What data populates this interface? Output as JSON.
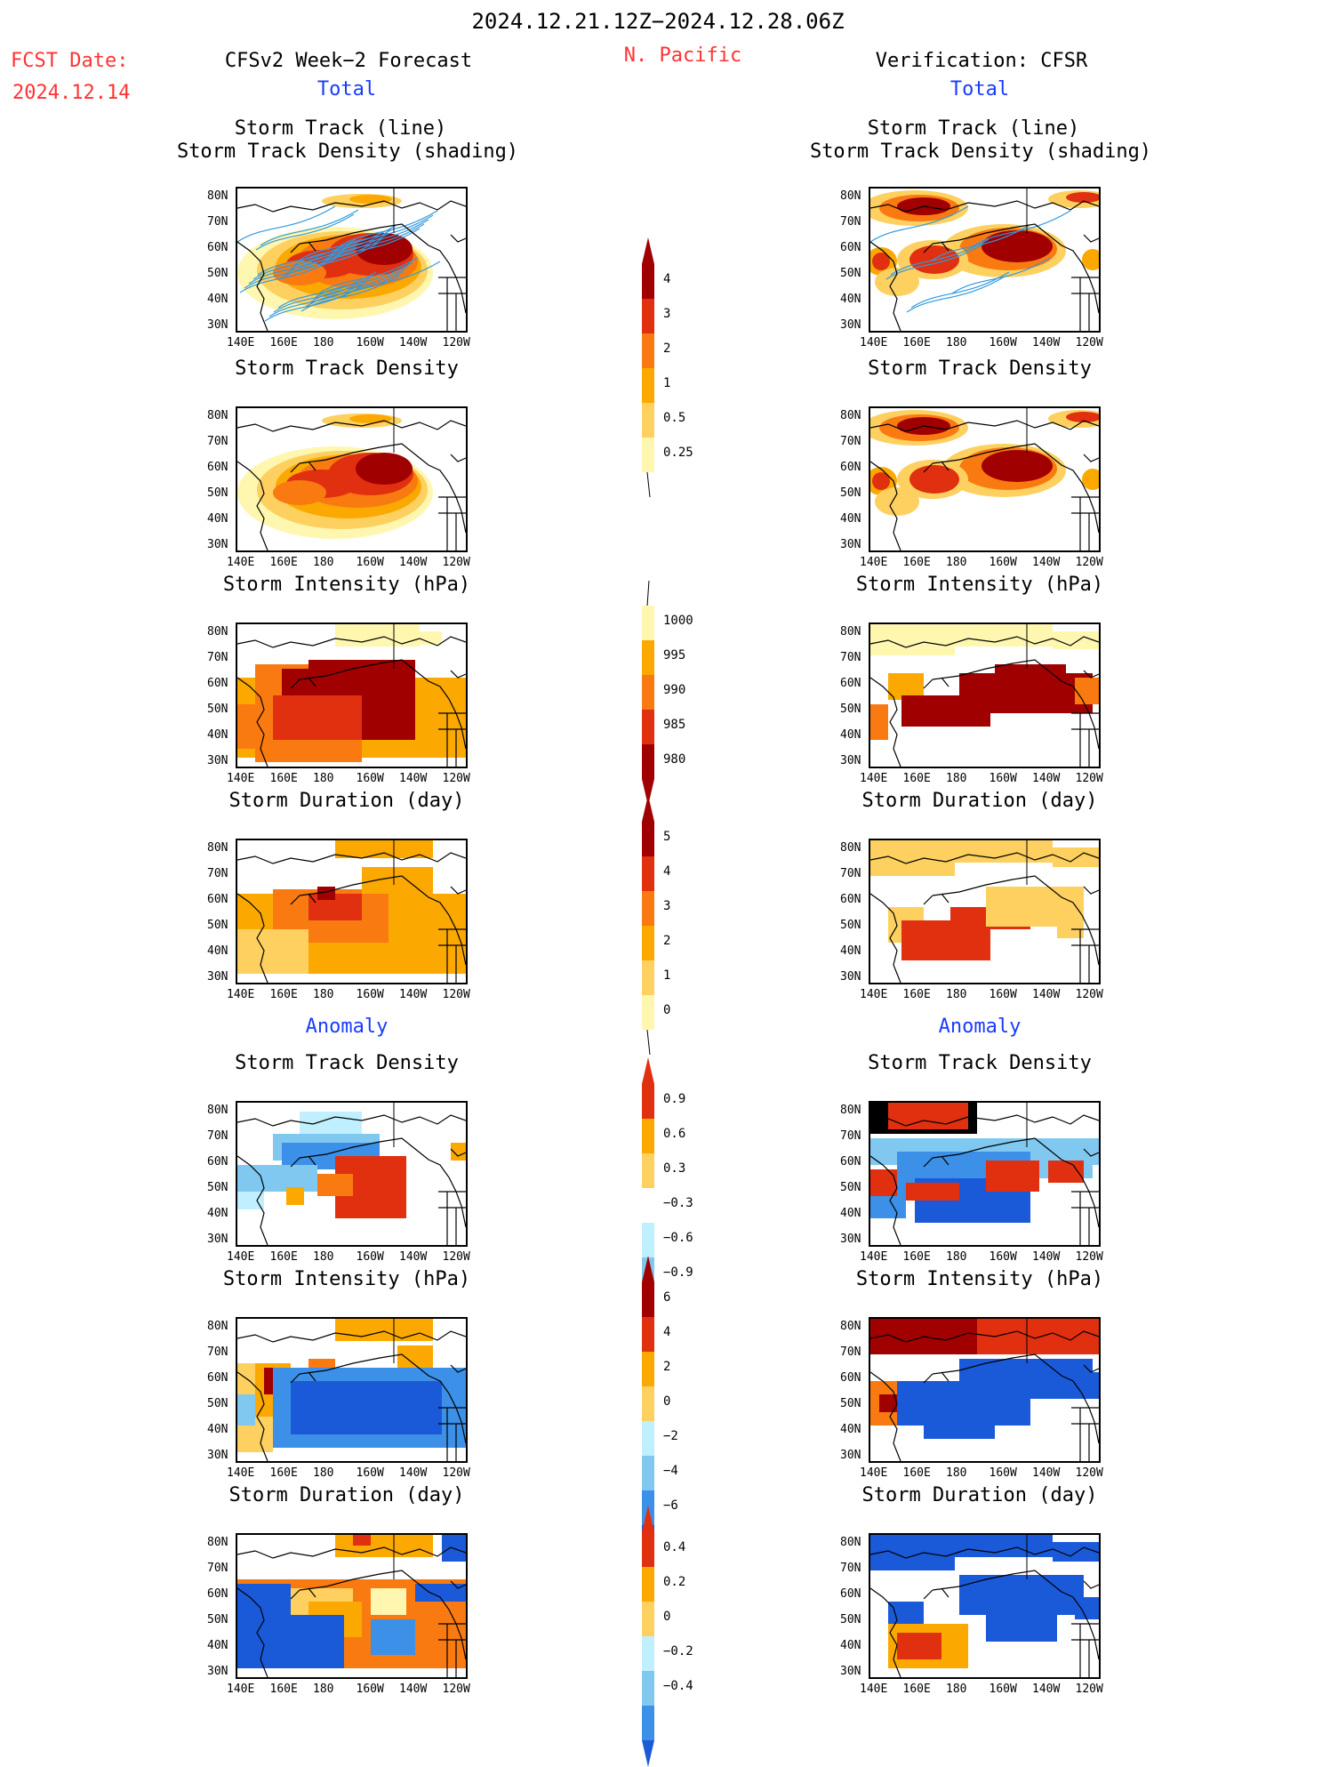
{
  "header": {
    "period": "2024.12.21.12Z−2024.12.28.06Z",
    "region": "N. Pacific",
    "fcst_label": "FCST Date:",
    "fcst_date": "2024.12.14",
    "left_title": "CFSv2 Week−2 Forecast",
    "right_title": "Verification: CFSR",
    "total_label": "Total",
    "anomaly_label": "Anomaly"
  },
  "panel_titles": {
    "track_line": "Storm Track (line)",
    "track_shading": "Storm Track Density (shading)",
    "density": "Storm Track Density",
    "intensity": "Storm Intensity (hPa)",
    "duration": "Storm Duration (day)"
  },
  "axes": {
    "lat_ticks": [
      "80N",
      "70N",
      "60N",
      "50N",
      "40N",
      "30N"
    ],
    "lon_ticks": [
      "140E",
      "160E",
      "180",
      "160W",
      "140W",
      "120W"
    ]
  },
  "colors": {
    "title_black": "#000000",
    "title_red": "#ff3333",
    "title_blue": "#1a3cff",
    "track_line": "#3399dd",
    "warm": [
      "#fff7b0",
      "#fdd060",
      "#fba800",
      "#f97a10",
      "#e03010",
      "#a00000"
    ],
    "cool": [
      "#c0f0ff",
      "#80c8f0",
      "#3c90e8",
      "#1a5ad8"
    ]
  },
  "colorbars": {
    "density_total": [
      "4",
      "3",
      "2",
      "1",
      "0.5",
      "0.25"
    ],
    "intensity_total": [
      "1000",
      "995",
      "990",
      "985",
      "980"
    ],
    "duration_total": [
      "5",
      "4",
      "3",
      "2",
      "1",
      "0"
    ],
    "density_anom": [
      "0.9",
      "0.6",
      "0.3",
      "−0.3",
      "−0.6",
      "−0.9"
    ],
    "intensity_anom": [
      "6",
      "4",
      "2",
      "0",
      "−2",
      "−4",
      "−6"
    ],
    "duration_anom": [
      "0.4",
      "0.2",
      "0",
      "−0.2",
      "−0.4"
    ]
  },
  "chart_data": [
    {
      "type": "heatmap",
      "panel": "forecast-total-track-density-with-tracks",
      "title": "Storm Track (line) / Storm Track Density (shading)",
      "colorbar": [
        "0.25",
        "0.5",
        "1",
        "2",
        "3",
        "4"
      ]
    },
    {
      "type": "heatmap",
      "panel": "verification-total-track-density-with-tracks",
      "title": "Storm Track (line) / Storm Track Density (shading)",
      "colorbar": [
        "0.25",
        "0.5",
        "1",
        "2",
        "3",
        "4"
      ]
    },
    {
      "type": "heatmap",
      "panel": "forecast-total-track-density",
      "title": "Storm Track Density"
    },
    {
      "type": "heatmap",
      "panel": "verification-total-track-density",
      "title": "Storm Track Density"
    },
    {
      "type": "heatmap",
      "panel": "forecast-total-intensity",
      "title": "Storm Intensity (hPa)",
      "colorbar": [
        "980",
        "985",
        "990",
        "995",
        "1000"
      ]
    },
    {
      "type": "heatmap",
      "panel": "verification-total-intensity",
      "title": "Storm Intensity (hPa)"
    },
    {
      "type": "heatmap",
      "panel": "forecast-total-duration",
      "title": "Storm Duration (day)",
      "colorbar": [
        "0",
        "1",
        "2",
        "3",
        "4",
        "5"
      ]
    },
    {
      "type": "heatmap",
      "panel": "verification-total-duration",
      "title": "Storm Duration (day)"
    },
    {
      "type": "heatmap",
      "panel": "forecast-anomaly-track-density",
      "title": "Storm Track Density",
      "colorbar": [
        "−0.9",
        "−0.6",
        "−0.3",
        "0.3",
        "0.6",
        "0.9"
      ]
    },
    {
      "type": "heatmap",
      "panel": "verification-anomaly-track-density",
      "title": "Storm Track Density"
    },
    {
      "type": "heatmap",
      "panel": "forecast-anomaly-intensity",
      "title": "Storm Intensity (hPa)",
      "colorbar": [
        "−6",
        "−4",
        "−2",
        "0",
        "2",
        "4",
        "6"
      ]
    },
    {
      "type": "heatmap",
      "panel": "verification-anomaly-intensity",
      "title": "Storm Intensity (hPa)"
    },
    {
      "type": "heatmap",
      "panel": "forecast-anomaly-duration",
      "title": "Storm Duration (day)",
      "colorbar": [
        "−0.4",
        "−0.2",
        "0",
        "0.2",
        "0.4"
      ]
    },
    {
      "type": "heatmap",
      "panel": "verification-anomaly-duration",
      "title": "Storm Duration (day)"
    }
  ]
}
